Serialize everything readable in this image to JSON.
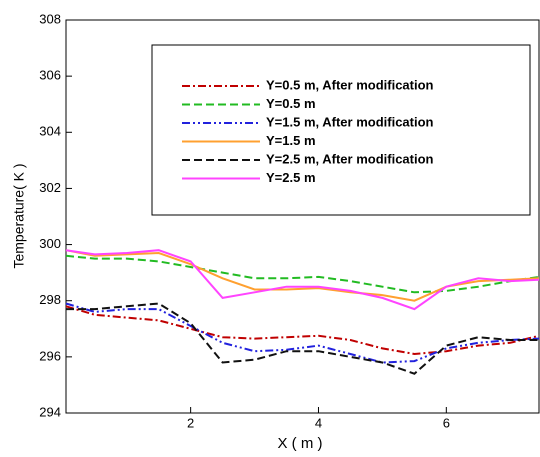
{
  "chart_data": {
    "type": "line",
    "x_label": "X ( m )",
    "y_label": "Temperature( K )",
    "x": [
      0.05,
      0.5,
      1,
      1.5,
      2,
      2.5,
      3,
      3.5,
      4,
      4.5,
      5,
      5.5,
      6,
      6.5,
      7,
      7.45
    ],
    "xlim": [
      0.05,
      7.45
    ],
    "xticks": [
      2,
      4,
      6
    ],
    "ylim": [
      294,
      308
    ],
    "yticks": [
      294,
      296,
      298,
      300,
      302,
      304,
      306,
      308
    ],
    "legend": "top-right",
    "series": [
      {
        "name": "Y=0.5 m, After modification",
        "color": "#c00000",
        "dash": "dashdot",
        "values": [
          297.8,
          297.5,
          297.4,
          297.3,
          297.0,
          296.7,
          296.65,
          296.7,
          296.75,
          296.6,
          296.3,
          296.1,
          296.2,
          296.4,
          296.5,
          296.75
        ]
      },
      {
        "name": "Y=0.5 m",
        "color": "#22bb22",
        "dash": "dash",
        "values": [
          299.6,
          299.5,
          299.5,
          299.4,
          299.2,
          299.0,
          298.8,
          298.8,
          298.85,
          298.7,
          298.5,
          298.3,
          298.35,
          298.5,
          298.7,
          298.85
        ]
      },
      {
        "name": "Y=1.5 m, After modification",
        "color": "#2222dd",
        "dash": "dashdotdot",
        "values": [
          297.9,
          297.6,
          297.7,
          297.7,
          297.1,
          296.5,
          296.2,
          296.25,
          296.4,
          296.1,
          295.8,
          295.85,
          296.3,
          296.5,
          296.6,
          296.65
        ]
      },
      {
        "name": "Y=1.5 m",
        "color": "#ffa030",
        "dash": "solid",
        "values": [
          299.8,
          299.6,
          299.65,
          299.7,
          299.3,
          298.8,
          298.4,
          298.4,
          298.45,
          298.3,
          298.2,
          298.0,
          298.5,
          298.7,
          298.75,
          298.8
        ]
      },
      {
        "name": "Y=2.5 m, After modification",
        "color": "#111111",
        "dash": "dash",
        "values": [
          297.7,
          297.7,
          297.8,
          297.9,
          297.2,
          295.8,
          295.9,
          296.2,
          296.2,
          296.0,
          295.8,
          295.4,
          296.4,
          296.7,
          296.6,
          296.6
        ]
      },
      {
        "name": "Y=2.5 m",
        "color": "#ff44ff",
        "dash": "solid",
        "values": [
          299.8,
          299.65,
          299.7,
          299.8,
          299.4,
          298.1,
          298.3,
          298.5,
          298.5,
          298.35,
          298.1,
          297.7,
          298.5,
          298.8,
          298.7,
          298.75
        ]
      }
    ]
  }
}
